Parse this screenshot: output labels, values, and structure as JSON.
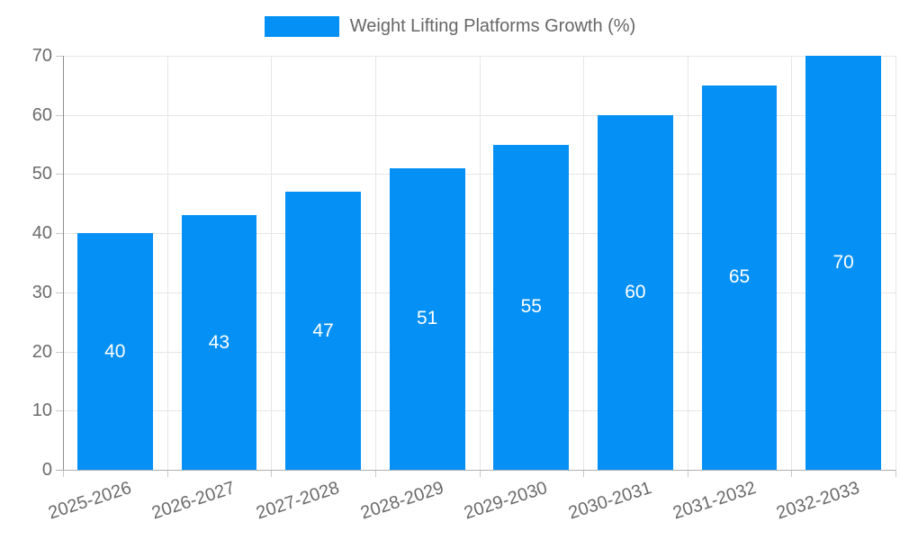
{
  "legend": {
    "label": "Weight Lifting Platforms Growth (%)"
  },
  "chart_data": {
    "type": "bar",
    "title": "Weight Lifting Platforms Growth (%)",
    "categories": [
      "2025-2026",
      "2026-2027",
      "2027-2028",
      "2028-2029",
      "2029-2030",
      "2030-2031",
      "2031-2032",
      "2032-2033"
    ],
    "values": [
      40,
      43,
      47,
      51,
      55,
      60,
      65,
      70
    ],
    "xlabel": "",
    "ylabel": "",
    "ylim": [
      0,
      70
    ],
    "yticks": [
      0,
      10,
      20,
      30,
      40,
      50,
      60,
      70
    ],
    "grid": true,
    "legend_position": "top",
    "value_labels_inside_bars": true
  },
  "colors": {
    "bar": "#0590f5",
    "bar_value_text": "#ffffff",
    "axis_text": "#6b6b6b",
    "gridline": "#e6e6e6",
    "axis_line": "#8f8f8f",
    "background": "#ffffff"
  }
}
